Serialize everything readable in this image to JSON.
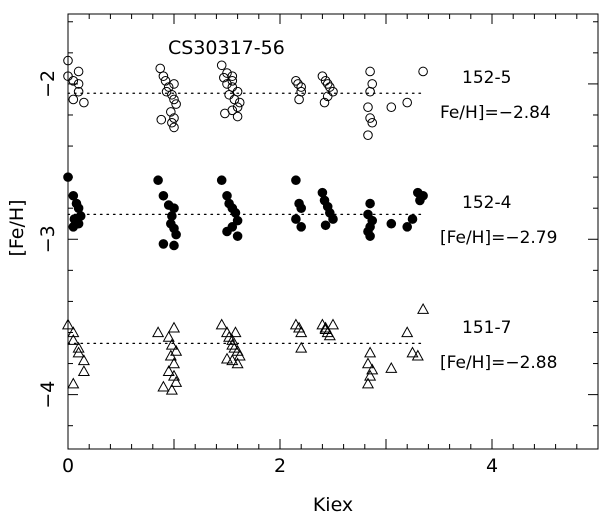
{
  "chart_data": {
    "type": "scatter",
    "title": "CS30317-56",
    "xlabel": "Kiex",
    "ylabel": "[Fe/H]",
    "xlim": [
      0,
      5
    ],
    "ylim": [
      -4.35,
      -1.55
    ],
    "x_ticks": [
      0,
      2,
      4
    ],
    "y_ticks": [
      -2,
      -3,
      -4
    ],
    "grid": false,
    "series": [
      {
        "name": "152-5",
        "marker": "open-circle",
        "mean_label": "Fe/H]=−2.84",
        "mean": -2.06,
        "x": [
          0.0,
          0.0,
          0.05,
          0.1,
          0.1,
          0.05,
          0.1,
          0.15,
          0.87,
          0.9,
          0.92,
          1.0,
          0.95,
          0.93,
          0.98,
          1.0,
          1.02,
          0.97,
          1.0,
          0.88,
          0.98,
          1.0,
          1.45,
          1.5,
          1.47,
          1.55,
          1.5,
          1.55,
          1.6,
          1.52,
          1.57,
          1.62,
          1.6,
          1.55,
          1.48,
          1.6,
          1.55,
          2.15,
          2.17,
          2.2,
          2.2,
          2.18,
          2.4,
          2.43,
          2.45,
          2.47,
          2.5,
          2.45,
          2.42,
          2.85,
          2.87,
          2.85,
          2.83,
          2.85,
          2.87,
          2.83,
          3.05,
          3.2,
          3.35
        ],
        "y": [
          -1.85,
          -1.95,
          -1.98,
          -2.0,
          -2.05,
          -2.1,
          -1.92,
          -2.12,
          -1.9,
          -1.95,
          -1.98,
          -2.0,
          -2.02,
          -2.05,
          -2.07,
          -2.1,
          -2.13,
          -2.18,
          -2.22,
          -2.23,
          -2.25,
          -2.28,
          -1.88,
          -1.93,
          -1.96,
          -1.98,
          -2.0,
          -2.02,
          -2.05,
          -2.07,
          -2.1,
          -2.12,
          -2.15,
          -2.17,
          -2.19,
          -2.21,
          -1.95,
          -1.98,
          -2.0,
          -2.02,
          -2.05,
          -2.1,
          -1.95,
          -1.98,
          -2.0,
          -2.02,
          -2.05,
          -2.08,
          -2.12,
          -1.92,
          -2.0,
          -2.05,
          -2.15,
          -2.22,
          -2.25,
          -2.33,
          -2.15,
          -2.12,
          -1.92
        ]
      },
      {
        "name": "152-4",
        "marker": "filled-circle",
        "mean_label": "[Fe/H]=−2.79",
        "mean": -2.84,
        "x": [
          0.0,
          0.05,
          0.08,
          0.1,
          0.12,
          0.06,
          0.1,
          0.05,
          0.85,
          0.9,
          0.95,
          1.0,
          0.98,
          0.97,
          1.0,
          1.02,
          0.9,
          1.0,
          1.45,
          1.5,
          1.52,
          1.55,
          1.58,
          1.6,
          1.55,
          1.5,
          1.6,
          2.15,
          2.18,
          2.2,
          2.15,
          2.2,
          2.4,
          2.42,
          2.45,
          2.47,
          2.5,
          2.43,
          2.85,
          2.83,
          2.87,
          2.85,
          2.83,
          2.85,
          3.05,
          3.2,
          3.25,
          3.3,
          3.32,
          3.35
        ],
        "y": [
          -2.6,
          -2.72,
          -2.77,
          -2.8,
          -2.85,
          -2.87,
          -2.9,
          -2.92,
          -2.62,
          -2.72,
          -2.78,
          -2.8,
          -2.85,
          -2.9,
          -2.93,
          -2.97,
          -3.03,
          -3.04,
          -2.62,
          -2.72,
          -2.77,
          -2.8,
          -2.83,
          -2.88,
          -2.92,
          -2.95,
          -2.98,
          -2.62,
          -2.77,
          -2.8,
          -2.87,
          -2.92,
          -2.7,
          -2.75,
          -2.79,
          -2.83,
          -2.87,
          -2.91,
          -2.77,
          -2.84,
          -2.88,
          -2.92,
          -2.95,
          -2.98,
          -2.9,
          -2.92,
          -2.87,
          -2.7,
          -2.75,
          -2.72
        ]
      },
      {
        "name": "151-7",
        "marker": "open-triangle",
        "mean_label": "[Fe/H]=−2.88",
        "mean": -3.67,
        "x": [
          0.0,
          0.05,
          0.05,
          0.1,
          0.1,
          0.15,
          0.15,
          0.05,
          0.85,
          0.95,
          1.0,
          0.98,
          1.02,
          0.97,
          1.0,
          0.95,
          1.0,
          1.02,
          0.9,
          0.98,
          1.45,
          1.5,
          1.52,
          1.55,
          1.55,
          1.57,
          1.6,
          1.62,
          1.5,
          1.55,
          1.6,
          1.58,
          2.15,
          2.18,
          2.2,
          2.2,
          2.4,
          2.43,
          2.45,
          2.47,
          2.5,
          2.43,
          2.85,
          2.83,
          2.87,
          2.85,
          2.83,
          3.05,
          3.2,
          3.25,
          3.3,
          3.35
        ],
        "y": [
          -3.55,
          -3.6,
          -3.65,
          -3.7,
          -3.73,
          -3.78,
          -3.85,
          -3.93,
          -3.6,
          -3.63,
          -3.57,
          -3.68,
          -3.72,
          -3.75,
          -3.8,
          -3.85,
          -3.88,
          -3.92,
          -3.95,
          -3.97,
          -3.55,
          -3.6,
          -3.63,
          -3.65,
          -3.68,
          -3.7,
          -3.72,
          -3.75,
          -3.77,
          -3.78,
          -3.8,
          -3.6,
          -3.55,
          -3.57,
          -3.6,
          -3.7,
          -3.55,
          -3.58,
          -3.6,
          -3.62,
          -3.55,
          -3.57,
          -3.73,
          -3.8,
          -3.84,
          -3.88,
          -3.93,
          -3.83,
          -3.6,
          -3.73,
          -3.75,
          -3.45
        ]
      }
    ]
  }
}
